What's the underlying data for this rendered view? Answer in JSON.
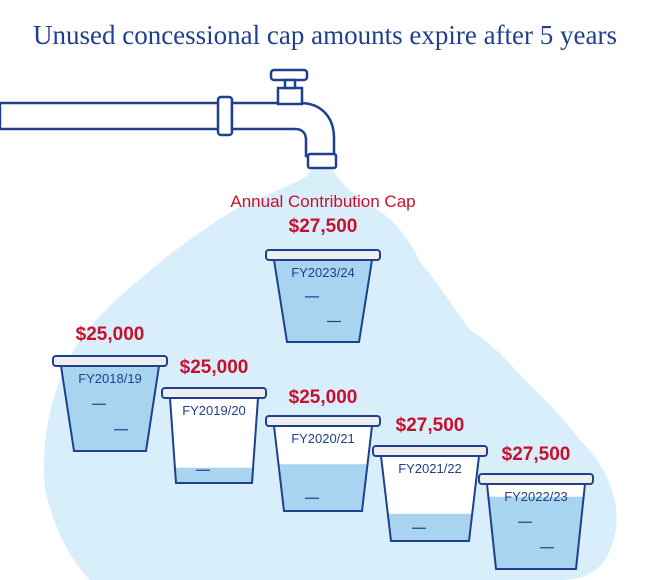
{
  "title": "Unused concessional cap amounts expire after 5 years",
  "cap_label": "Annual Contribution Cap",
  "colors": {
    "title": "#1f3f8f",
    "red": "#c8102e",
    "outline": "#1f3f8f",
    "water_light": "#d8eefa",
    "water_fill": "#a9d4ef",
    "cup_bg": "#ffffff",
    "rim": "#eeeeee",
    "tap": "#ffffff"
  },
  "icons": {
    "tap": "water-tap-icon"
  },
  "buckets": [
    {
      "year": "FY2023/24",
      "amount": "$27,500",
      "fill": 1.0
    },
    {
      "year": "FY2018/19",
      "amount": "$25,000",
      "fill": 1.0
    },
    {
      "year": "FY2019/20",
      "amount": "$25,000",
      "fill": 0.18
    },
    {
      "year": "FY2020/21",
      "amount": "$25,000",
      "fill": 0.55
    },
    {
      "year": "FY2021/22",
      "amount": "$27,500",
      "fill": 0.32
    },
    {
      "year": "FY2022/23",
      "amount": "$27,500",
      "fill": 0.85
    }
  ]
}
